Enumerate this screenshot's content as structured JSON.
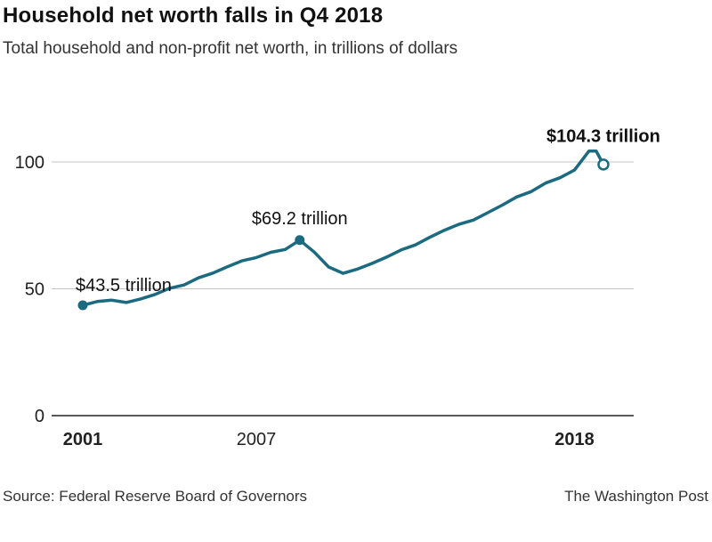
{
  "chart_data": {
    "type": "line",
    "title": "Household net worth falls in Q4 2018",
    "subtitle": "Total household and non-profit net worth, in trillions of dollars",
    "ylabel": "",
    "xlabel": "",
    "ylim": [
      0,
      104.3
    ],
    "yticks": [
      "0",
      "50",
      "100"
    ],
    "grid": true,
    "x_tick_labels": [
      {
        "label": "2001",
        "x": 2001,
        "bold": true
      },
      {
        "label": "2007",
        "x": 2007,
        "bold": false
      },
      {
        "label": "2018",
        "x": 2018,
        "bold": true
      }
    ],
    "series": [
      {
        "color": "#1b6a80",
        "points": [
          [
            2001.0,
            43.5
          ],
          [
            2001.5,
            45.0
          ],
          [
            2002.0,
            45.5
          ],
          [
            2002.5,
            44.6
          ],
          [
            2003.0,
            46.0
          ],
          [
            2003.5,
            47.8
          ],
          [
            2004.0,
            50.2
          ],
          [
            2004.5,
            51.5
          ],
          [
            2005.0,
            54.3
          ],
          [
            2005.5,
            56.2
          ],
          [
            2006.0,
            58.7
          ],
          [
            2006.5,
            61.0
          ],
          [
            2007.0,
            62.3
          ],
          [
            2007.5,
            64.4
          ],
          [
            2008.0,
            65.5
          ],
          [
            2008.5,
            69.2
          ],
          [
            2009.0,
            64.5
          ],
          [
            2009.5,
            58.6
          ],
          [
            2010.0,
            56.1
          ],
          [
            2010.5,
            57.8
          ],
          [
            2011.0,
            60.0
          ],
          [
            2011.5,
            62.5
          ],
          [
            2012.0,
            65.3
          ],
          [
            2012.5,
            67.3
          ],
          [
            2013.0,
            70.3
          ],
          [
            2013.5,
            73.1
          ],
          [
            2014.0,
            75.4
          ],
          [
            2014.5,
            77.1
          ],
          [
            2015.0,
            80.0
          ],
          [
            2015.5,
            83.0
          ],
          [
            2016.0,
            86.2
          ],
          [
            2016.5,
            88.3
          ],
          [
            2017.0,
            91.7
          ],
          [
            2017.5,
            93.8
          ],
          [
            2018.0,
            96.8
          ],
          [
            2018.5,
            104.3
          ],
          [
            2018.75,
            104.3
          ],
          [
            2019.0,
            99.0
          ]
        ],
        "endpoint_open": true
      }
    ],
    "annotations": [
      {
        "text": "$43.5 trillion",
        "x": 2001.0,
        "y": 43.5,
        "bold": false
      },
      {
        "text": "$69.2 trillion",
        "x": 2008.5,
        "y": 69.2,
        "bold": false
      },
      {
        "text": "$104.3 trillion",
        "x": 2018.75,
        "y": 104.3,
        "bold": true
      }
    ]
  },
  "footer": {
    "source": "Source: Federal Reserve Board of Governors",
    "credit": "The Washington Post"
  }
}
